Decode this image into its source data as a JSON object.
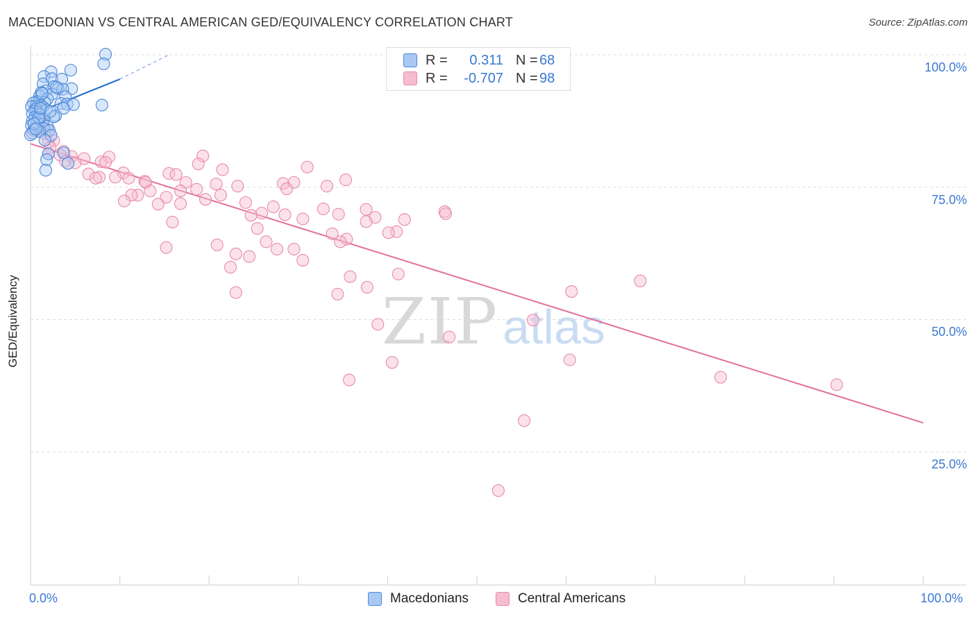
{
  "header": {
    "title": "MACEDONIAN VS CENTRAL AMERICAN GED/EQUIVALENCY CORRELATION CHART",
    "source": "Source: ZipAtlas.com"
  },
  "watermark": {
    "zip": "ZIP",
    "atlas": "atlas"
  },
  "colors": {
    "blue_fill": "#a9c9f3",
    "blue_stroke": "#4a86d8",
    "blue_line": "#2a70d0",
    "pink_fill": "#f6bcd0",
    "pink_stroke": "#e88aab",
    "pink_line": "#e0709a",
    "grid": "#dddddd",
    "label": "#3a78d2"
  },
  "stats_legend": [
    {
      "r_label": "R =",
      "r_value": "0.311",
      "n_label": "N =",
      "n_value": "68",
      "series": "Macedonians"
    },
    {
      "r_label": "R =",
      "r_value": "-0.707",
      "n_label": "N =",
      "n_value": "98",
      "series": "Central Americans"
    }
  ],
  "chart_data": {
    "type": "scatter",
    "title": "MACEDONIAN VS CENTRAL AMERICAN GED/EQUIVALENCY CORRELATION CHART",
    "xlabel": "",
    "ylabel": "GED/Equivalency",
    "xlim": [
      0,
      100
    ],
    "ylim": [
      0,
      100
    ],
    "x_ticks": [
      "0.0%",
      "100.0%"
    ],
    "y_ticks": [
      {
        "value": 100,
        "label": "100.0%"
      },
      {
        "value": 75,
        "label": "75.0%"
      },
      {
        "value": 50,
        "label": "50.0%"
      },
      {
        "value": 25,
        "label": "25.0%"
      }
    ],
    "legend": [
      "Macedonians",
      "Central Americans"
    ],
    "series": [
      {
        "name": "Macedonians",
        "color": "#4a86d8",
        "r": 0.311,
        "n": 68,
        "trend": {
          "x0": 0.0,
          "y0": 88.6,
          "x1": 10.0,
          "y1": 95.4,
          "dashed_to_x": 15.5,
          "dashed_to_y": 100.0
        },
        "points": [
          [
            8.4,
            100.1
          ],
          [
            8.2,
            98.3
          ],
          [
            4.5,
            97.1
          ],
          [
            2.3,
            96.8
          ],
          [
            1.5,
            95.9
          ],
          [
            2.4,
            95.5
          ],
          [
            3.5,
            95.4
          ],
          [
            1.4,
            94.5
          ],
          [
            2.6,
            94.0
          ],
          [
            3.1,
            93.6
          ],
          [
            4.6,
            93.6
          ],
          [
            3.6,
            93.5
          ],
          [
            1.7,
            93.2
          ],
          [
            1.2,
            92.9
          ],
          [
            2.4,
            92.6
          ],
          [
            1.0,
            92.2
          ],
          [
            3.9,
            92.1
          ],
          [
            1.9,
            91.7
          ],
          [
            0.7,
            91.2
          ],
          [
            0.9,
            91.1
          ],
          [
            1.6,
            91.0
          ],
          [
            0.3,
            90.9
          ],
          [
            3.4,
            90.8
          ],
          [
            4.1,
            90.7
          ],
          [
            4.8,
            90.6
          ],
          [
            8.0,
            90.5
          ],
          [
            1.2,
            90.4
          ],
          [
            0.6,
            90.3
          ],
          [
            0.1,
            90.2
          ],
          [
            1.4,
            90.1
          ],
          [
            3.7,
            89.9
          ],
          [
            0.6,
            89.8
          ],
          [
            1.8,
            89.6
          ],
          [
            0.5,
            89.4
          ],
          [
            0.8,
            89.1
          ],
          [
            0.2,
            88.9
          ],
          [
            1.0,
            88.7
          ],
          [
            2.8,
            88.5
          ],
          [
            2.6,
            88.3
          ],
          [
            0.5,
            88.2
          ],
          [
            1.5,
            87.9
          ],
          [
            1.0,
            87.8
          ],
          [
            0.2,
            87.5
          ],
          [
            0.7,
            87.2
          ],
          [
            1.4,
            86.9
          ],
          [
            0.1,
            86.7
          ],
          [
            1.9,
            86.5
          ],
          [
            0.8,
            86.3
          ],
          [
            1.5,
            86.1
          ],
          [
            0.4,
            85.9
          ],
          [
            2.1,
            85.7
          ],
          [
            1.0,
            85.5
          ],
          [
            0.2,
            85.2
          ],
          [
            0.0,
            84.9
          ],
          [
            3.7,
            81.5
          ],
          [
            2.0,
            81.3
          ],
          [
            1.8,
            80.2
          ],
          [
            4.2,
            79.5
          ],
          [
            1.7,
            78.2
          ],
          [
            2.2,
            89.3
          ],
          [
            0.9,
            88.1
          ],
          [
            1.3,
            92.7
          ],
          [
            2.9,
            93.9
          ],
          [
            0.4,
            87.0
          ],
          [
            1.1,
            89.9
          ],
          [
            0.6,
            86.0
          ],
          [
            2.3,
            84.8
          ],
          [
            1.6,
            83.9
          ]
        ]
      },
      {
        "name": "Central Americans",
        "color": "#e88aab",
        "r": -0.707,
        "n": 98,
        "trend": {
          "x0": 0.0,
          "y0": 83.2,
          "x1": 100.0,
          "y1": 30.5
        },
        "points": [
          [
            0.7,
            87.3
          ],
          [
            1.4,
            87.2
          ],
          [
            1.9,
            85.9
          ],
          [
            0.3,
            85.7
          ],
          [
            1.6,
            85.1
          ],
          [
            2.6,
            83.8
          ],
          [
            2.0,
            83.5
          ],
          [
            2.2,
            82.5
          ],
          [
            3.7,
            81.8
          ],
          [
            2.0,
            81.3
          ],
          [
            3.3,
            81.1
          ],
          [
            4.6,
            80.8
          ],
          [
            8.8,
            80.7
          ],
          [
            6.0,
            80.4
          ],
          [
            3.9,
            79.9
          ],
          [
            7.9,
            79.8
          ],
          [
            5.0,
            79.6
          ],
          [
            8.4,
            79.7
          ],
          [
            19.3,
            80.9
          ],
          [
            18.8,
            79.4
          ],
          [
            21.5,
            78.3
          ],
          [
            31.0,
            78.8
          ],
          [
            15.5,
            77.6
          ],
          [
            10.4,
            77.7
          ],
          [
            6.5,
            77.5
          ],
          [
            16.3,
            77.4
          ],
          [
            7.7,
            76.9
          ],
          [
            9.5,
            76.9
          ],
          [
            11.0,
            76.7
          ],
          [
            7.3,
            76.7
          ],
          [
            12.8,
            76.1
          ],
          [
            12.9,
            75.9
          ],
          [
            17.4,
            75.9
          ],
          [
            20.8,
            75.6
          ],
          [
            28.3,
            75.7
          ],
          [
            29.5,
            75.9
          ],
          [
            23.2,
            75.2
          ],
          [
            33.2,
            75.2
          ],
          [
            35.3,
            76.4
          ],
          [
            28.7,
            74.7
          ],
          [
            18.6,
            74.6
          ],
          [
            16.8,
            74.3
          ],
          [
            13.4,
            74.3
          ],
          [
            12.0,
            73.5
          ],
          [
            11.3,
            73.5
          ],
          [
            15.2,
            73.1
          ],
          [
            21.3,
            73.5
          ],
          [
            19.6,
            72.7
          ],
          [
            10.5,
            72.4
          ],
          [
            24.1,
            72.1
          ],
          [
            14.3,
            71.8
          ],
          [
            16.8,
            71.9
          ],
          [
            27.2,
            71.3
          ],
          [
            32.8,
            70.9
          ],
          [
            37.6,
            70.8
          ],
          [
            46.4,
            70.4
          ],
          [
            25.9,
            70.1
          ],
          [
            46.5,
            70.0
          ],
          [
            34.5,
            69.9
          ],
          [
            24.7,
            69.7
          ],
          [
            28.5,
            69.8
          ],
          [
            38.6,
            69.3
          ],
          [
            30.5,
            69.0
          ],
          [
            41.9,
            68.9
          ],
          [
            15.9,
            68.4
          ],
          [
            37.6,
            68.5
          ],
          [
            41.0,
            66.6
          ],
          [
            25.4,
            67.2
          ],
          [
            33.8,
            66.2
          ],
          [
            40.1,
            66.4
          ],
          [
            35.4,
            65.2
          ],
          [
            34.7,
            64.7
          ],
          [
            26.4,
            64.7
          ],
          [
            20.9,
            64.1
          ],
          [
            15.2,
            63.6
          ],
          [
            27.6,
            63.3
          ],
          [
            29.5,
            63.3
          ],
          [
            30.5,
            61.2
          ],
          [
            23.0,
            62.4
          ],
          [
            24.5,
            61.9
          ],
          [
            35.8,
            58.1
          ],
          [
            41.2,
            58.6
          ],
          [
            22.4,
            59.9
          ],
          [
            37.7,
            56.1
          ],
          [
            34.4,
            54.8
          ],
          [
            23.0,
            55.1
          ],
          [
            60.6,
            55.3
          ],
          [
            56.3,
            49.9
          ],
          [
            38.9,
            49.1
          ],
          [
            46.9,
            46.7
          ],
          [
            60.4,
            42.4
          ],
          [
            40.5,
            41.9
          ],
          [
            35.7,
            38.6
          ],
          [
            77.3,
            39.1
          ],
          [
            90.3,
            37.7
          ],
          [
            55.3,
            30.9
          ],
          [
            52.4,
            17.7
          ],
          [
            68.3,
            57.3
          ]
        ]
      }
    ]
  },
  "axis": {
    "x_min_label": "0.0%",
    "x_max_label": "100.0%",
    "y_title": "GED/Equivalency"
  },
  "bottom_legend": [
    {
      "label": "Macedonians"
    },
    {
      "label": "Central Americans"
    }
  ]
}
